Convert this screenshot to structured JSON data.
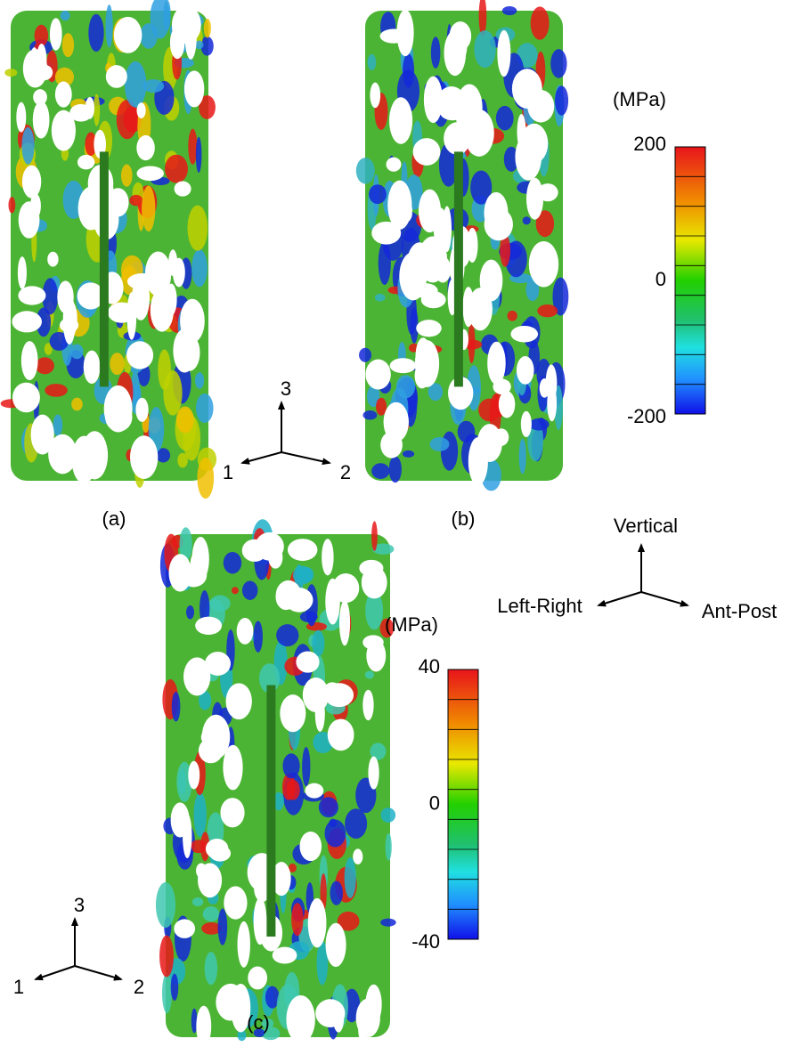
{
  "panels": [
    {
      "caption": "(a)"
    },
    {
      "caption": "(b)"
    },
    {
      "caption": "(c)"
    }
  ],
  "colorbars": [
    {
      "unit": "(MPa)",
      "ticks": [
        200,
        0,
        -200
      ]
    },
    {
      "unit": "(MPa)",
      "ticks": [
        40,
        0,
        -40
      ]
    }
  ],
  "triads": [
    {
      "labels": [
        "3",
        "1",
        "2"
      ]
    },
    {
      "labels": [
        "3",
        "1",
        "2"
      ]
    },
    {
      "labels": [
        "Vertical",
        "Left-Right",
        "Ant-Post"
      ]
    }
  ]
}
